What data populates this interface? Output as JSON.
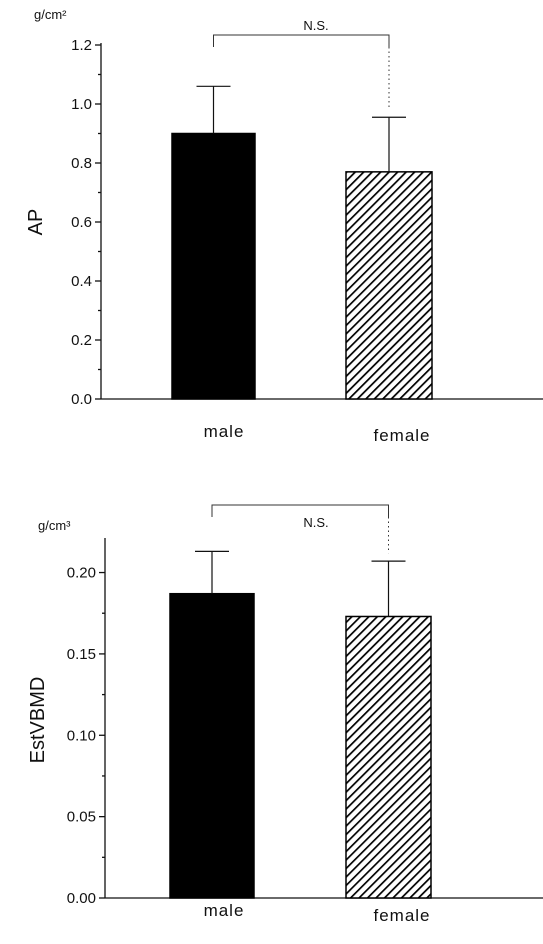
{
  "chart_data": [
    {
      "type": "bar",
      "ylabel": "AP",
      "unit": "g/cm²",
      "categories": [
        "male",
        "female"
      ],
      "values": [
        0.9,
        0.77
      ],
      "error_upper": [
        1.06,
        0.955
      ],
      "ylim": [
        0,
        1.2
      ],
      "yticks": [
        "0.0",
        "0.2",
        "0.4",
        "0.6",
        "0.8",
        "1.0",
        "1.2"
      ],
      "significance": "N.S.",
      "bar_styles": [
        "solid",
        "hatched"
      ],
      "colors": {
        "bar": "#000000",
        "axis": "#111111"
      }
    },
    {
      "type": "bar",
      "ylabel": "EstVBMD",
      "unit": "g/cm³",
      "categories": [
        "male",
        "female"
      ],
      "values": [
        0.187,
        0.173
      ],
      "error_upper": [
        0.213,
        0.207
      ],
      "ylim": [
        0,
        0.22
      ],
      "yticks": [
        "0.00",
        "0.05",
        "0.10",
        "0.15",
        "0.20"
      ],
      "significance": "N.S.",
      "bar_styles": [
        "solid",
        "hatched"
      ],
      "colors": {
        "bar": "#000000",
        "axis": "#111111"
      }
    }
  ]
}
